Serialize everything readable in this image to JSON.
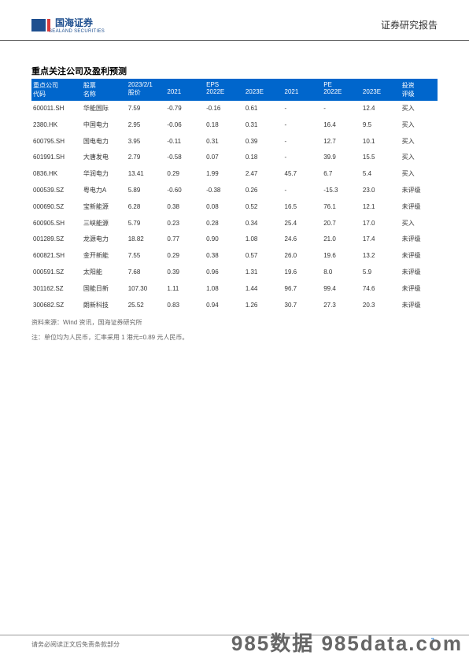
{
  "header": {
    "logo_cn": "国海证券",
    "logo_en": "SEALAND SECURITIES",
    "right_text": "证券研究报告"
  },
  "title": "重点关注公司及盈利预测",
  "table": {
    "header_row1": {
      "code": "重点公司",
      "name": "股票",
      "price": "2023/2/1",
      "eps_group": "EPS",
      "pe_group": "PE",
      "rating": "投资"
    },
    "header_row2": {
      "code": "代码",
      "name": "名称",
      "price": "股价",
      "eps_2021": "2021",
      "eps_2022e": "2022E",
      "eps_2023e": "2023E",
      "pe_2021": "2021",
      "pe_2022e": "2022E",
      "pe_2023e": "2023E",
      "rating": "评级"
    },
    "rows": [
      {
        "code": "600011.SH",
        "name": "华能国际",
        "price": "7.59",
        "eps21": "-0.79",
        "eps22": "-0.16",
        "eps23": "0.61",
        "pe21": "-",
        "pe22": "-",
        "pe23": "12.4",
        "rating": "买入"
      },
      {
        "code": "2380.HK",
        "name": "中国电力",
        "price": "2.95",
        "eps21": "-0.06",
        "eps22": "0.18",
        "eps23": "0.31",
        "pe21": "-",
        "pe22": "16.4",
        "pe23": "9.5",
        "rating": "买入"
      },
      {
        "code": "600795.SH",
        "name": "国电电力",
        "price": "3.95",
        "eps21": "-0.11",
        "eps22": "0.31",
        "eps23": "0.39",
        "pe21": "-",
        "pe22": "12.7",
        "pe23": "10.1",
        "rating": "买入"
      },
      {
        "code": "601991.SH",
        "name": "大唐发电",
        "price": "2.79",
        "eps21": "-0.58",
        "eps22": "0.07",
        "eps23": "0.18",
        "pe21": "-",
        "pe22": "39.9",
        "pe23": "15.5",
        "rating": "买入"
      },
      {
        "code": "0836.HK",
        "name": "华润电力",
        "price": "13.41",
        "eps21": "0.29",
        "eps22": "1.99",
        "eps23": "2.47",
        "pe21": "45.7",
        "pe22": "6.7",
        "pe23": "5.4",
        "rating": "买入"
      },
      {
        "code": "000539.SZ",
        "name": "粤电力A",
        "price": "5.89",
        "eps21": "-0.60",
        "eps22": "-0.38",
        "eps23": "0.26",
        "pe21": "-",
        "pe22": "-15.3",
        "pe23": "23.0",
        "rating": "未评级"
      },
      {
        "code": "000690.SZ",
        "name": "宝新能源",
        "price": "6.28",
        "eps21": "0.38",
        "eps22": "0.08",
        "eps23": "0.52",
        "pe21": "16.5",
        "pe22": "76.1",
        "pe23": "12.1",
        "rating": "未评级"
      },
      {
        "code": "600905.SH",
        "name": "三峡能源",
        "price": "5.79",
        "eps21": "0.23",
        "eps22": "0.28",
        "eps23": "0.34",
        "pe21": "25.4",
        "pe22": "20.7",
        "pe23": "17.0",
        "rating": "买入"
      },
      {
        "code": "001289.SZ",
        "name": "龙源电力",
        "price": "18.82",
        "eps21": "0.77",
        "eps22": "0.90",
        "eps23": "1.08",
        "pe21": "24.6",
        "pe22": "21.0",
        "pe23": "17.4",
        "rating": "未评级"
      },
      {
        "code": "600821.SH",
        "name": "金开新能",
        "price": "7.55",
        "eps21": "0.29",
        "eps22": "0.38",
        "eps23": "0.57",
        "pe21": "26.0",
        "pe22": "19.6",
        "pe23": "13.2",
        "rating": "未评级"
      },
      {
        "code": "000591.SZ",
        "name": "太阳能",
        "price": "7.68",
        "eps21": "0.39",
        "eps22": "0.96",
        "eps23": "1.31",
        "pe21": "19.6",
        "pe22": "8.0",
        "pe23": "5.9",
        "rating": "未评级"
      },
      {
        "code": "301162.SZ",
        "name": "国能日新",
        "price": "107.30",
        "eps21": "1.11",
        "eps22": "1.08",
        "eps23": "1.44",
        "pe21": "96.7",
        "pe22": "99.4",
        "pe23": "74.6",
        "rating": "未评级"
      },
      {
        "code": "300682.SZ",
        "name": "朗新科技",
        "price": "25.52",
        "eps21": "0.83",
        "eps22": "0.94",
        "eps23": "1.26",
        "pe21": "30.7",
        "pe22": "27.3",
        "pe23": "20.3",
        "rating": "未评级"
      }
    ]
  },
  "source_line1": "资料来源：Wind 资讯，国海证券研究所",
  "source_line2": "注：单位均为人民币，汇率采用 1 港元=0.89 元人民币。",
  "footer": {
    "left": "请务必阅读正文后免责条款部分",
    "page": "3"
  },
  "watermark": "985数据 985data.com",
  "colors": {
    "header_bg": "#0066cc",
    "header_text": "#ffffff",
    "body_text": "#333333",
    "logo_blue": "#1e4f8f"
  }
}
